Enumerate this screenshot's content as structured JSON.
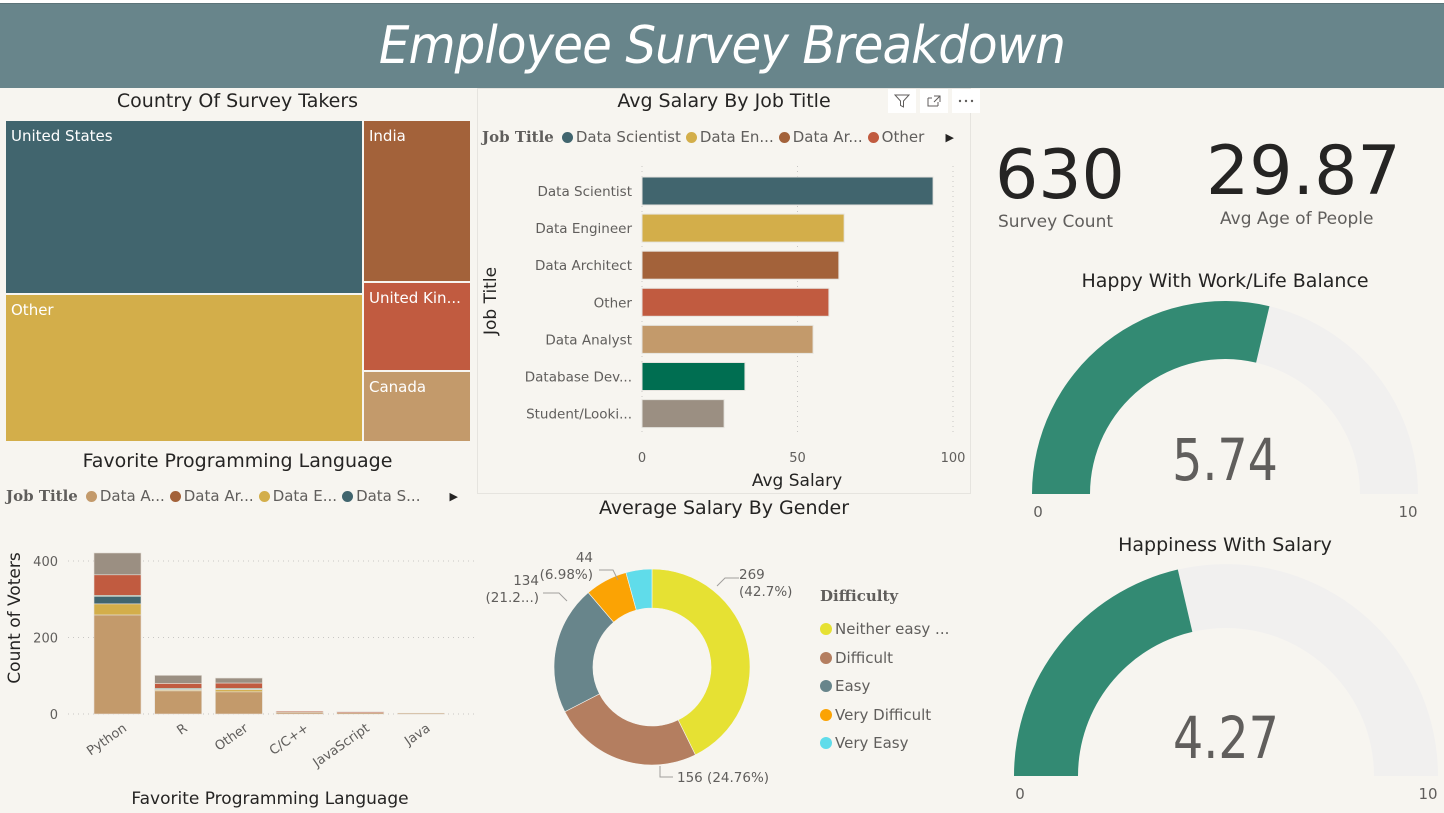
{
  "header": {
    "title": "Employee Survey Breakdown"
  },
  "colors": {
    "header_bg": "#68858b",
    "data_scientist": "#41656e",
    "data_engineer": "#d3ae4a",
    "data_architect": "#a3623a",
    "other": "#c15b40",
    "data_analyst": "#c39a6b",
    "database_dev": "#006e51",
    "student": "#9b8f82",
    "gauge_fill": "#338a73",
    "gauge_track": "#f1f0ef"
  },
  "visual_header_icons": [
    "filter-icon",
    "focus-mode-icon",
    "more-options-icon"
  ],
  "kpis": [
    {
      "value": "630",
      "label": "Survey Count"
    },
    {
      "value": "29.87",
      "label": "Avg Age of People"
    }
  ],
  "chart_data": [
    {
      "id": "country",
      "type": "treemap",
      "title": "Country Of Survey Takers",
      "items": [
        {
          "label": "United States",
          "color": "#41656e",
          "approx_share": 0.4
        },
        {
          "label": "Other",
          "color": "#d3ae4a",
          "approx_share": 0.34
        },
        {
          "label": "India",
          "color": "#a3623a",
          "approx_share": 0.13
        },
        {
          "label": "United Kin...",
          "color": "#c15b40",
          "approx_share": 0.07
        },
        {
          "label": "Canada",
          "color": "#c39a6b",
          "approx_share": 0.06
        }
      ]
    },
    {
      "id": "salary_by_job",
      "type": "bar",
      "orientation": "horizontal",
      "title": "Avg Salary By Job Title",
      "legend_title": "Job Title",
      "legend": [
        {
          "label": "Data Scientist",
          "color": "#41656e"
        },
        {
          "label": "Data En...",
          "color": "#d3ae4a"
        },
        {
          "label": "Data Ar...",
          "color": "#a3623a"
        },
        {
          "label": "Other",
          "color": "#c15b40"
        }
      ],
      "categories": [
        "Data Scientist",
        "Data Engineer",
        "Data Architect",
        "Other",
        "Data Analyst",
        "Database Dev...",
        "Student/Looki..."
      ],
      "values": [
        93.6,
        65.0,
        63.3,
        60.1,
        55.0,
        33.1,
        26.4
      ],
      "colors": [
        "#41656e",
        "#d3ae4a",
        "#a3623a",
        "#c15b40",
        "#c39a6b",
        "#006e51",
        "#9b8f82"
      ],
      "xlabel": "Avg Salary",
      "ylabel": "Job Title",
      "xlim": [
        0,
        100
      ],
      "xticks": [
        "0",
        "50",
        "100"
      ],
      "grid": true
    },
    {
      "id": "fav_language",
      "type": "bar",
      "stacked": true,
      "title": "Favorite Programming Language",
      "legend_title": "Job Title",
      "legend": [
        {
          "label": "Data A...",
          "color": "#c39a6b"
        },
        {
          "label": "Data Ar...",
          "color": "#a3623a"
        },
        {
          "label": "Data E...",
          "color": "#d3ae4a"
        },
        {
          "label": "Data S...",
          "color": "#41656e"
        }
      ],
      "categories": [
        "Python",
        "R",
        "Other",
        "C/C++",
        "JavaScript",
        "Java"
      ],
      "series": [
        {
          "name": "Data Analyst",
          "color": "#c39a6b",
          "values": [
            259,
            62,
            58,
            6,
            5,
            2
          ]
        },
        {
          "name": "Data Engineer",
          "color": "#d3ae4a",
          "values": [
            29,
            1,
            6,
            0,
            0,
            0
          ]
        },
        {
          "name": "Data Scientist",
          "color": "#41656e",
          "values": [
            20,
            3,
            2,
            0,
            0,
            0
          ]
        },
        {
          "name": "Database Dev",
          "color": "#338a73",
          "values": [
            2,
            1,
            1,
            0,
            0,
            0
          ]
        },
        {
          "name": "Other",
          "color": "#c15b40",
          "values": [
            54,
            13,
            14,
            1,
            1,
            0
          ]
        },
        {
          "name": "Student/Looking",
          "color": "#9b8f82",
          "values": [
            57,
            21,
            13,
            0,
            0,
            0
          ]
        }
      ],
      "xlabel": "Favorite Programming Language",
      "ylabel": "Count of Voters",
      "ylim": [
        0,
        440
      ],
      "yticks": [
        "0",
        "200",
        "400"
      ],
      "grid": true
    },
    {
      "id": "difficulty",
      "type": "pie",
      "donut": true,
      "title": "Average Salary By Gender",
      "legend_title": "Difficulty",
      "slices": [
        {
          "label": "Neither easy ...",
          "value": 269,
          "data_label": "269",
          "pct_label": "(42.7%)",
          "color": "#e6e133"
        },
        {
          "label": "Difficult",
          "value": 156,
          "data_label": "156 (24.76%)",
          "pct_label": "",
          "color": "#b47e60"
        },
        {
          "label": "Easy",
          "value": 134,
          "data_label": "134",
          "pct_label": "(21.2...)",
          "color": "#68858b"
        },
        {
          "label": "Very Difficult",
          "value": 44,
          "data_label": "44",
          "pct_label": "(6.98%)",
          "color": "#fba304"
        },
        {
          "label": "Very Easy",
          "value": 27,
          "data_label": "",
          "pct_label": "",
          "color": "#60dcea"
        }
      ]
    },
    {
      "id": "gauge_worklife",
      "type": "gauge",
      "title": "Happy With Work/Life Balance",
      "value": 5.74,
      "value_label": "5.74",
      "min": 0,
      "max": 10,
      "min_label": "0",
      "max_label": "10"
    },
    {
      "id": "gauge_salary",
      "type": "gauge",
      "title": "Happiness With Salary",
      "value": 4.27,
      "value_label": "4.27",
      "min": 0,
      "max": 10,
      "min_label": "0",
      "max_label": "10"
    }
  ]
}
